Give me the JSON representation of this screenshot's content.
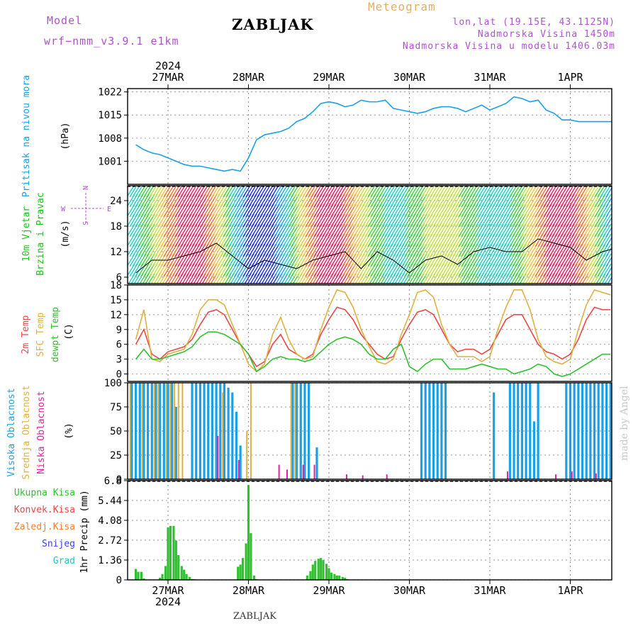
{
  "header": {
    "model_label": "Model",
    "model_value": "wrf−nmm_v3.9.1  e1km",
    "title": "ZABLJAK",
    "meteogram": "Meteogram",
    "lonlat": "lon,lat (19.15E, 43.1125N)",
    "altitude": "Nadmorska Visina 1450m",
    "model_altitude": "Nadmorska Visina u modelu 1406.03m"
  },
  "footer": {
    "name": "ZABLJAK",
    "credit": "made by Angel"
  },
  "time_axis": {
    "year": "2024",
    "labels": [
      "27MAR",
      "28MAR",
      "29MAR",
      "30MAR",
      "31MAR",
      "1APR"
    ]
  },
  "colors": {
    "pressure": "#1aa0e8",
    "temp2m": "#e84848",
    "sfc": "#e0b040",
    "dewpt": "#30c030",
    "high_cloud": "#1aa0e8",
    "mid_cloud": "#e0b040",
    "low_cloud": "#e020a0",
    "precip_total": "#30c030",
    "precip_conv": "#e84848",
    "precip_frozen": "#f08030",
    "snow": "#4040e0",
    "grad": "#30c0c0",
    "axis_label_pressure": "#1aa0e8",
    "axis_label_wind": "#20c020",
    "wind_legend": "#b050d0"
  },
  "chart_data": [
    {
      "type": "line",
      "panel": "pressure",
      "ylabel_name": "Pritisak na nivou mora",
      "ylabel_unit": "(hPa)",
      "ylim": [
        994,
        1023
      ],
      "yticks": [
        "1022",
        "1015",
        "1008",
        "1001"
      ],
      "yticks_values": [
        1022,
        1015,
        1008,
        1001
      ],
      "x_days": [
        -0.4,
        -0.3,
        -0.2,
        -0.1,
        0,
        0.1,
        0.2,
        0.3,
        0.4,
        0.5,
        0.6,
        0.7,
        0.8,
        0.9,
        1.0,
        1.1,
        1.2,
        1.3,
        1.4,
        1.5,
        1.6,
        1.7,
        1.8,
        1.9,
        2.0,
        2.1,
        2.2,
        2.3,
        2.4,
        2.5,
        2.6,
        2.7,
        2.8,
        2.9,
        3.0,
        3.1,
        3.2,
        3.3,
        3.4,
        3.5,
        3.6,
        3.7,
        3.8,
        3.9,
        4.0,
        4.1,
        4.2,
        4.3,
        4.4,
        4.5,
        4.6,
        4.7,
        4.8,
        4.9,
        5.0,
        5.1,
        5.2,
        5.3,
        5.4,
        5.5,
        5.6
      ],
      "values": [
        1006,
        1004.5,
        1003.5,
        1003,
        1002,
        1001,
        1000,
        999.5,
        999.5,
        999,
        998.5,
        998,
        998.5,
        998,
        1002,
        1007.5,
        1009,
        1009.5,
        1010,
        1011,
        1013,
        1014,
        1016,
        1018.5,
        1019,
        1018.5,
        1017.5,
        1018,
        1019.5,
        1019,
        1019,
        1019.5,
        1017,
        1016.5,
        1016,
        1015.5,
        1016,
        1017,
        1017.5,
        1017.5,
        1017,
        1016,
        1017,
        1018,
        1016.5,
        1017.5,
        1018.5,
        1020.5,
        1020,
        1019,
        1019.5,
        1016.5,
        1015.5,
        1013.5,
        1013.5,
        1013,
        1013,
        1013,
        1013,
        1013,
        1013
      ]
    },
    {
      "type": "line",
      "panel": "wind",
      "ylabel_name": "10m Vjetar",
      "ylabel_name2": "Brzina i Pravac",
      "ylabel_unit": "(m/s)",
      "legend": {
        "n": "N",
        "s": "S",
        "w": "W",
        "e": "E"
      },
      "ylim": [
        4.5,
        27.5
      ],
      "yticks": [
        "24",
        "18",
        "12",
        "6"
      ],
      "yticks_values": [
        24,
        18,
        12,
        6
      ],
      "x_days": [
        -0.4,
        -0.2,
        0,
        0.2,
        0.4,
        0.6,
        0.8,
        1.0,
        1.2,
        1.4,
        1.6,
        1.8,
        2.0,
        2.2,
        2.4,
        2.6,
        2.8,
        3.0,
        3.2,
        3.4,
        3.6,
        3.8,
        4.0,
        4.2,
        4.4,
        4.6,
        4.8,
        5.0,
        5.2,
        5.4,
        5.6
      ],
      "values": [
        7,
        10,
        10,
        11,
        12,
        14,
        11,
        8,
        10,
        9,
        8,
        10,
        11,
        12,
        8,
        12,
        10,
        7,
        10,
        11,
        9,
        12,
        13,
        12,
        12,
        15,
        14,
        13,
        10,
        12,
        13
      ]
    },
    {
      "type": "line",
      "panel": "temperature",
      "ylabel_series": [
        "2m Temp",
        "SFC Temp",
        "dewpt Temp"
      ],
      "ylabel_unit": "(C)",
      "ylim": [
        -1.5,
        18
      ],
      "yticks": [
        "18",
        "15",
        "12",
        "9",
        "6",
        "3",
        "0"
      ],
      "yticks_values": [
        18,
        15,
        12,
        9,
        6,
        3,
        0
      ],
      "x_days": [
        -0.4,
        -0.3,
        -0.2,
        -0.1,
        0,
        0.1,
        0.2,
        0.3,
        0.4,
        0.5,
        0.6,
        0.7,
        0.8,
        0.9,
        1.0,
        1.1,
        1.2,
        1.3,
        1.4,
        1.5,
        1.6,
        1.7,
        1.8,
        1.9,
        2.0,
        2.1,
        2.2,
        2.3,
        2.4,
        2.5,
        2.6,
        2.7,
        2.8,
        2.9,
        3.0,
        3.1,
        3.2,
        3.3,
        3.4,
        3.5,
        3.6,
        3.7,
        3.8,
        3.9,
        4.0,
        4.1,
        4.2,
        4.3,
        4.4,
        4.5,
        4.6,
        4.7,
        4.8,
        4.9,
        5.0,
        5.1,
        5.2,
        5.3,
        5.4,
        5.5
      ],
      "series": [
        {
          "name": "2m Temp",
          "color_key": "temp2m",
          "values": [
            6,
            9,
            4,
            3,
            4.5,
            5,
            5.5,
            7,
            10,
            12.5,
            13,
            12,
            9,
            6,
            4,
            1.5,
            2.5,
            6,
            8,
            5,
            4,
            3,
            4,
            8,
            11,
            13.5,
            13,
            11,
            8,
            6,
            4,
            3,
            3.5,
            7,
            10,
            12.5,
            13,
            12,
            9,
            6,
            4.5,
            5,
            5,
            4,
            5,
            8,
            11,
            12,
            12,
            9,
            6,
            4.5,
            4,
            3,
            4,
            7,
            11,
            13.5,
            13,
            13
          ]
        },
        {
          "name": "SFC Temp",
          "color_key": "sfc",
          "values": [
            7,
            13,
            3,
            2.5,
            4,
            4.5,
            5,
            8,
            13,
            15,
            15,
            14,
            10,
            6,
            2,
            0.5,
            2,
            8,
            11.5,
            7,
            4,
            3,
            3.5,
            9,
            13.5,
            17,
            16.5,
            13.5,
            9,
            5.5,
            2.5,
            2,
            3,
            8,
            12,
            16.5,
            17,
            15.5,
            10,
            6,
            3.5,
            3.5,
            3.5,
            2.5,
            3.5,
            9,
            13.5,
            17,
            17,
            13,
            7,
            3.5,
            2.5,
            2,
            3,
            9,
            14,
            17,
            16.5,
            16
          ]
        },
        {
          "name": "dewpt Temp",
          "color_key": "dewpt",
          "values": [
            3,
            5,
            3,
            3,
            3.5,
            4,
            4.5,
            5.5,
            7.5,
            8.5,
            8.5,
            8,
            7,
            6,
            4,
            0.5,
            1.5,
            3,
            3.5,
            3,
            3,
            2.5,
            3,
            4.5,
            6,
            7,
            7.5,
            7,
            6,
            4,
            3,
            3,
            5,
            6,
            1.5,
            0.5,
            2,
            3,
            3,
            1,
            1,
            1,
            1.5,
            2,
            1.5,
            1,
            1,
            0,
            0.5,
            1,
            2,
            1.5,
            0,
            -0.5,
            0,
            1,
            2,
            3,
            4,
            4
          ]
        }
      ]
    },
    {
      "type": "bar",
      "panel": "cloud",
      "ylabel_series": [
        "Visoka Oblacnost",
        "Srednja Oblacnost",
        "Niska Oblacnost"
      ],
      "ylabel_unit": "(%)",
      "ylim": [
        0,
        100
      ],
      "yticks": [
        "100",
        "75",
        "50",
        "25",
        "0"
      ],
      "yticks_values": [
        100,
        75,
        50,
        25,
        0
      ],
      "bar_width_days": 0.028,
      "high_x_days": [
        -0.45,
        -0.4,
        -0.35,
        -0.3,
        -0.25,
        -0.2,
        -0.15,
        -0.1,
        -0.05,
        0,
        0.05,
        0.1,
        0.3,
        0.35,
        0.4,
        0.45,
        0.5,
        0.55,
        0.6,
        0.65,
        0.7,
        0.75,
        0.8,
        0.85,
        0.9,
        1.55,
        1.6,
        1.65,
        1.7,
        1.75,
        1.85,
        3.15,
        3.2,
        3.25,
        3.3,
        3.35,
        3.4,
        3.45,
        4.05,
        4.25,
        4.3,
        4.35,
        4.4,
        4.45,
        4.5,
        4.55,
        4.6,
        4.95,
        5.0,
        5.05,
        5.1,
        5.15,
        5.2,
        5.25,
        5.3,
        5.35,
        5.4,
        5.45,
        5.5,
        5.55,
        5.6
      ],
      "high_values": [
        100,
        100,
        100,
        100,
        100,
        100,
        100,
        100,
        100,
        100,
        100,
        75,
        100,
        100,
        100,
        100,
        100,
        100,
        100,
        100,
        100,
        95,
        90,
        70,
        35,
        100,
        100,
        100,
        100,
        100,
        33,
        100,
        100,
        100,
        100,
        100,
        100,
        100,
        90,
        100,
        100,
        100,
        100,
        100,
        100,
        60,
        100,
        100,
        100,
        100,
        100,
        100,
        100,
        100,
        100,
        100,
        100,
        100,
        100,
        100,
        100
      ],
      "mid_x_days": [
        -0.47,
        -0.32,
        -0.17,
        -0.12,
        -0.02,
        0.03,
        0.08,
        0.13,
        0.18,
        0.68,
        0.98,
        1.03,
        1.53,
        1.58
      ],
      "mid_values": [
        100,
        100,
        100,
        100,
        100,
        100,
        100,
        100,
        100,
        90,
        50,
        100,
        100,
        100
      ],
      "low_x_days": [
        0.62,
        0.88,
        1.38,
        1.48,
        1.68,
        1.82,
        2.22,
        2.42,
        2.72,
        4.22,
        4.82,
        5.02,
        5.32
      ],
      "low_values": [
        45,
        20,
        15,
        10,
        15,
        15,
        5,
        4,
        5,
        8,
        5,
        8,
        6
      ]
    },
    {
      "type": "bar",
      "panel": "precip",
      "ylabel": "1hr Precip (mm)",
      "legend": [
        "Ukupna Kisa",
        "Konvek.Kisa",
        "Zaledj.Kisa",
        "Snijeg",
        "Grad"
      ],
      "ylim": [
        0,
        6.8
      ],
      "yticks": [
        "6.8",
        "5.44",
        "4.08",
        "2.72",
        "1.36",
        "0"
      ],
      "yticks_values": [
        6.8,
        5.44,
        4.08,
        2.72,
        1.36,
        0
      ],
      "bar_width_days": 0.028,
      "x_days": [
        -0.4,
        -0.37,
        -0.33,
        -0.3,
        -0.1,
        -0.07,
        -0.03,
        0,
        0.03,
        0.07,
        0.1,
        0.13,
        0.17,
        0.2,
        0.23,
        0.27,
        0.3,
        0.33,
        0.87,
        0.9,
        0.93,
        0.97,
        1.0,
        1.03,
        1.07,
        1.1,
        1.73,
        1.77,
        1.8,
        1.83,
        1.87,
        1.9,
        1.93,
        1.97,
        2.0,
        2.03,
        2.07,
        2.1,
        2.13,
        2.17,
        2.2,
        2.23
      ],
      "values": [
        0.75,
        0.55,
        0.55,
        0.1,
        0.15,
        0.4,
        0.95,
        3.6,
        3.7,
        3.7,
        2.7,
        1.7,
        0.95,
        0.7,
        0.4,
        0.2,
        0.05,
        0.05,
        0.9,
        1.05,
        1.5,
        2.5,
        6.5,
        3.2,
        0.3,
        0.05,
        0.3,
        0.6,
        1.05,
        1.3,
        1.45,
        1.5,
        1.35,
        1.1,
        0.8,
        0.5,
        0.4,
        0.3,
        0.3,
        0.2,
        0.15,
        0.05
      ]
    }
  ]
}
